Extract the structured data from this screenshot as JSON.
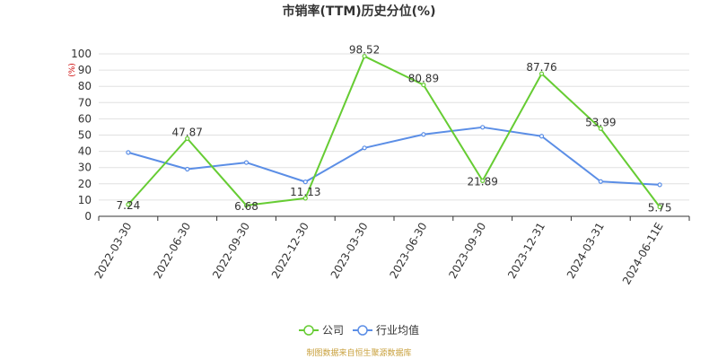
{
  "chart_data": {
    "type": "line",
    "title": "市销率(TTM)历史分位(%)",
    "unit_label": "(%)",
    "ylim": [
      0,
      100
    ],
    "y_ticks": [
      0,
      10,
      20,
      30,
      40,
      50,
      60,
      70,
      80,
      90,
      100
    ],
    "categories": [
      "2022-03-30",
      "2022-06-30",
      "2022-09-30",
      "2022-12-30",
      "2023-03-30",
      "2023-06-30",
      "2023-09-30",
      "2023-12-31",
      "2024-03-31",
      "2024-06-11E"
    ],
    "grid": true,
    "legend_position": "bottom-center",
    "series": [
      {
        "name": "公司",
        "color": "#66cc33",
        "values": [
          7.24,
          47.87,
          6.68,
          11.13,
          98.52,
          80.89,
          21.89,
          87.76,
          53.99,
          5.75
        ],
        "labels": [
          "7.24",
          "47.87",
          "6.68",
          "11.13",
          "98.52",
          "80.89",
          "21.89",
          "87.76",
          "53.99",
          "5.75"
        ]
      },
      {
        "name": "行业均值",
        "color": "#5b8ee6",
        "values": [
          39.3,
          29.0,
          33.1,
          21.2,
          42.1,
          50.4,
          54.8,
          49.3,
          21.4,
          19.4
        ]
      }
    ]
  },
  "footer": {
    "source": "制图数据来自恒生聚源数据库"
  }
}
